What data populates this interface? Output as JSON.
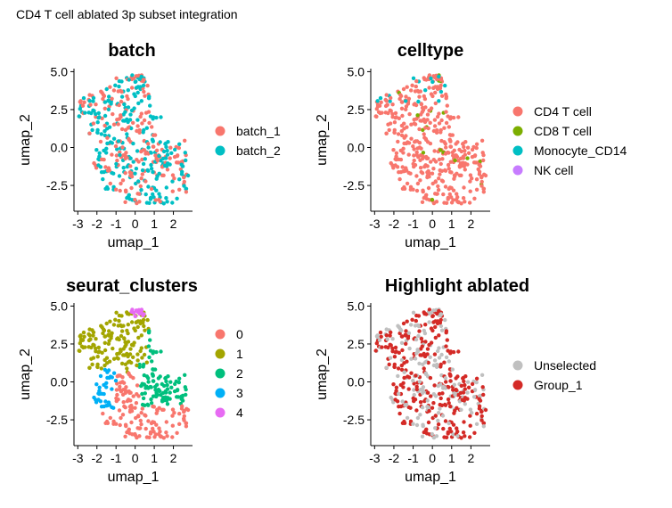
{
  "figure_title": "CD4 T cell ablated 3p subset integration",
  "chart_data": [
    {
      "type": "scatter",
      "title": "batch",
      "xlabel": "umap_1",
      "ylabel": "umap_2",
      "xlim": [
        -3.2,
        3.0
      ],
      "ylim": [
        -4.2,
        5.2
      ],
      "xticks": [
        -3,
        -2,
        -1,
        0,
        1,
        2
      ],
      "yticks": [
        5.0,
        2.5,
        0.0,
        -2.5
      ],
      "xtick_labels": [
        "-3",
        "-2",
        "-1",
        "0",
        "1",
        "2"
      ],
      "ytick_labels": [
        "5.0",
        "2.5",
        "0.0",
        "-2.5"
      ],
      "legend_position": "right",
      "colors": {
        "batch_1": "#F8766D",
        "batch_2": "#00BFC4"
      },
      "series": [
        {
          "name": "batch_1",
          "share": 0.5,
          "category_regions": null
        },
        {
          "name": "batch_2",
          "share": 0.5,
          "category_regions": null
        }
      ],
      "note_points": "approximately 450 points per panel, same embedding in all four panels"
    },
    {
      "type": "scatter",
      "title": "celltype",
      "xlabel": "umap_1",
      "ylabel": "umap_2",
      "xlim": [
        -3.2,
        3.0
      ],
      "ylim": [
        -4.2,
        5.2
      ],
      "xticks": [
        -3,
        -2,
        -1,
        0,
        1,
        2
      ],
      "yticks": [
        5.0,
        2.5,
        0.0,
        -2.5
      ],
      "xtick_labels": [
        "-3",
        "-2",
        "-1",
        "0",
        "1",
        "2"
      ],
      "ytick_labels": [
        "5.0",
        "2.5",
        "0.0",
        "-2.5"
      ],
      "legend_position": "right",
      "colors": {
        "CD4 T cell": "#F8766D",
        "CD8 T cell": "#7CAE00",
        "Monocyte_CD14": "#00BFC4",
        "NK cell": "#C77CFF"
      },
      "series": [
        {
          "name": "CD4 T cell",
          "share": 0.95
        },
        {
          "name": "CD8 T cell",
          "share": 0.04
        },
        {
          "name": "Monocyte_CD14",
          "share": 0.01
        },
        {
          "name": "NK cell",
          "share": 0.0
        }
      ]
    },
    {
      "type": "scatter",
      "title": "seurat_clusters",
      "xlabel": "umap_1",
      "ylabel": "umap_2",
      "xlim": [
        -3.2,
        3.0
      ],
      "ylim": [
        -4.2,
        5.2
      ],
      "xticks": [
        -3,
        -2,
        -1,
        0,
        1,
        2
      ],
      "yticks": [
        5.0,
        2.5,
        0.0,
        -2.5
      ],
      "xtick_labels": [
        "-3",
        "-2",
        "-1",
        "0",
        "1",
        "2"
      ],
      "ytick_labels": [
        "5.0",
        "2.5",
        "0.0",
        "-2.5"
      ],
      "legend_position": "right",
      "colors": {
        "0": "#F8766D",
        "1": "#A3A500",
        "2": "#00BF7D",
        "3": "#00B0F6",
        "4": "#E76BF3"
      },
      "series": [
        {
          "name": "0",
          "centroid": [
            0.6,
            -2.2
          ]
        },
        {
          "name": "1",
          "centroid": [
            -1.2,
            2.6
          ]
        },
        {
          "name": "2",
          "centroid": [
            1.2,
            0.0
          ]
        },
        {
          "name": "3",
          "centroid": [
            -1.4,
            -0.5
          ]
        },
        {
          "name": "4",
          "centroid": [
            0.0,
            4.6
          ]
        }
      ]
    },
    {
      "type": "scatter",
      "title": "Highlight ablated",
      "xlabel": "umap_1",
      "ylabel": "umap_2",
      "xlim": [
        -3.2,
        3.0
      ],
      "ylim": [
        -4.2,
        5.2
      ],
      "xticks": [
        -3,
        -2,
        -1,
        0,
        1,
        2
      ],
      "yticks": [
        5.0,
        2.5,
        0.0,
        -2.5
      ],
      "xtick_labels": [
        "-3",
        "-2",
        "-1",
        "0",
        "1",
        "2"
      ],
      "ytick_labels": [
        "5.0",
        "2.5",
        "0.0",
        "-2.5"
      ],
      "legend_position": "right",
      "colors": {
        "Unselected": "#C0C0C0",
        "Group_1": "#D42A26"
      },
      "series": [
        {
          "name": "Unselected",
          "share": 0.4
        },
        {
          "name": "Group_1",
          "share": 0.6
        }
      ]
    }
  ]
}
